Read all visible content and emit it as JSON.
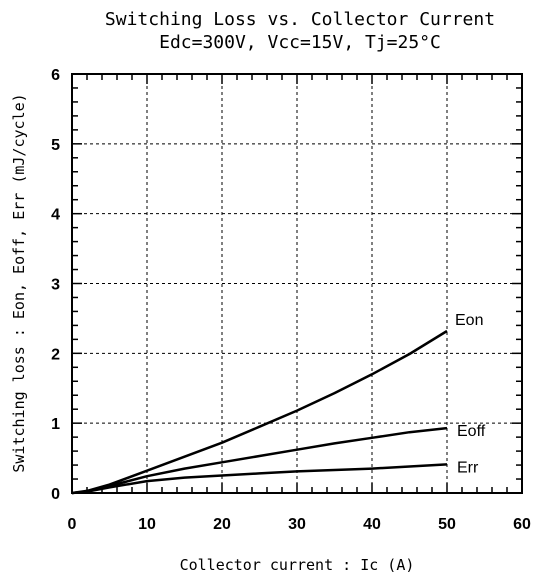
{
  "chart_data": {
    "type": "line",
    "title": "Switching Loss vs. Collector Current",
    "subtitle": "Edc=300V, Vcc=15V, Tj=25°C",
    "xlabel": "Collector current : Ic (A)",
    "ylabel": "Switching loss : Eon, Eoff, Err (mJ/cycle)",
    "xlim": [
      0,
      60
    ],
    "ylim": [
      0,
      6
    ],
    "xticks": [
      "0",
      "10",
      "20",
      "30",
      "40",
      "50",
      "60"
    ],
    "yticks": [
      "0",
      "1",
      "2",
      "3",
      "4",
      "5",
      "6"
    ],
    "grid": true,
    "grid_style": "dashed",
    "colors": {
      "line": "#000000",
      "grid": "#000000",
      "background": "#ffffff"
    },
    "series": [
      {
        "name": "Eon",
        "x": [
          0,
          2,
          5,
          10,
          15,
          20,
          25,
          30,
          35,
          40,
          45,
          50
        ],
        "values": [
          0.0,
          0.03,
          0.12,
          0.32,
          0.52,
          0.72,
          0.95,
          1.18,
          1.43,
          1.7,
          1.99,
          2.32
        ]
      },
      {
        "name": "Eoff",
        "x": [
          0,
          2,
          5,
          10,
          15,
          20,
          25,
          30,
          35,
          40,
          45,
          50
        ],
        "values": [
          0.0,
          0.02,
          0.1,
          0.24,
          0.35,
          0.44,
          0.53,
          0.62,
          0.71,
          0.79,
          0.87,
          0.93
        ]
      },
      {
        "name": "Err",
        "x": [
          0,
          2,
          5,
          10,
          15,
          20,
          25,
          30,
          35,
          40,
          45,
          50
        ],
        "values": [
          0.0,
          0.02,
          0.08,
          0.17,
          0.22,
          0.25,
          0.28,
          0.31,
          0.33,
          0.35,
          0.38,
          0.41
        ]
      }
    ]
  }
}
